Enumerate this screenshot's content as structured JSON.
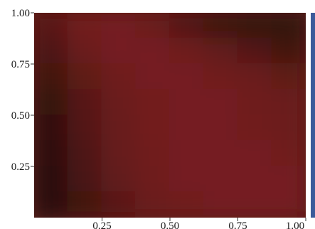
{
  "chart_data": {
    "type": "heatmap",
    "title": "",
    "xlabel": "",
    "ylabel": "",
    "xlim": [
      0,
      1
    ],
    "ylim": [
      0,
      1
    ],
    "x_ticks": [
      {
        "value": 0.25,
        "label": "0.25"
      },
      {
        "value": 0.5,
        "label": "0.50"
      },
      {
        "value": 0.75,
        "label": "0.75"
      },
      {
        "value": 1.0,
        "label": "1.00"
      }
    ],
    "y_ticks": [
      {
        "value": 0.25,
        "label": "0.25"
      },
      {
        "value": 0.5,
        "label": "0.50"
      },
      {
        "value": 0.75,
        "label": "0.75"
      },
      {
        "value": 1.0,
        "label": "1.00"
      }
    ],
    "grid": false,
    "colorscale": {
      "low": "#2a1008",
      "high": "#7a1f22",
      "colorbar_accent": "#3b5b9a"
    },
    "z": [
      [
        0.6,
        0.9,
        0.92,
        0.8,
        0.5,
        0.25,
        0.15,
        0.1
      ],
      [
        0.45,
        0.8,
        0.92,
        0.93,
        0.85,
        0.7,
        0.5,
        0.3
      ],
      [
        0.3,
        0.65,
        0.85,
        0.92,
        0.93,
        0.88,
        0.8,
        0.65
      ],
      [
        0.15,
        0.55,
        0.8,
        0.9,
        0.93,
        0.92,
        0.85,
        0.8
      ],
      [
        0.08,
        0.5,
        0.78,
        0.9,
        0.93,
        0.93,
        0.88,
        0.82
      ],
      [
        0.05,
        0.45,
        0.75,
        0.88,
        0.93,
        0.94,
        0.92,
        0.88
      ],
      [
        0.03,
        0.4,
        0.7,
        0.85,
        0.92,
        0.94,
        0.94,
        0.92
      ],
      [
        0.0,
        0.3,
        0.6,
        0.8,
        0.88,
        0.92,
        0.93,
        0.92
      ]
    ]
  }
}
